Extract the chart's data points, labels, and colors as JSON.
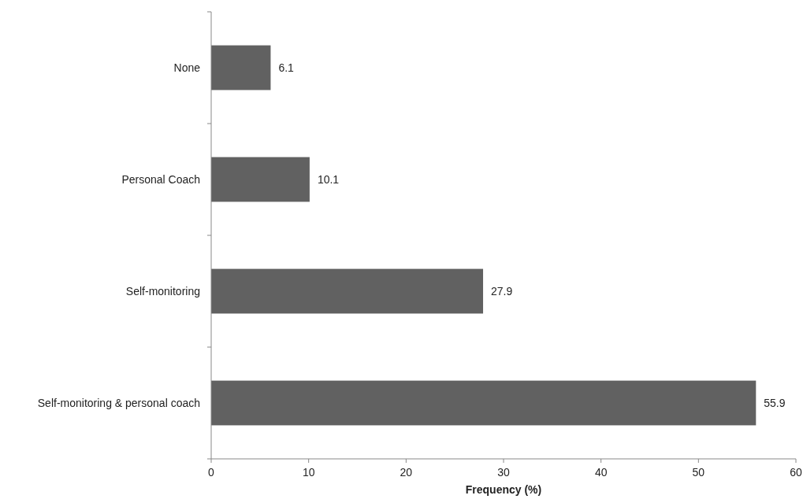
{
  "chart_data": {
    "type": "bar",
    "orientation": "horizontal",
    "xlabel": "Frequency (%)",
    "categories": [
      "None",
      "Personal Coach",
      "Self-monitoring",
      "Self-monitoring & personal coach"
    ],
    "values": [
      6.1,
      10.1,
      27.9,
      55.9
    ],
    "color": "#616161",
    "data_labels": true,
    "xlim": [
      0,
      60
    ],
    "xticks": [
      0,
      10,
      20,
      30,
      40,
      50,
      60
    ],
    "grid": false
  }
}
